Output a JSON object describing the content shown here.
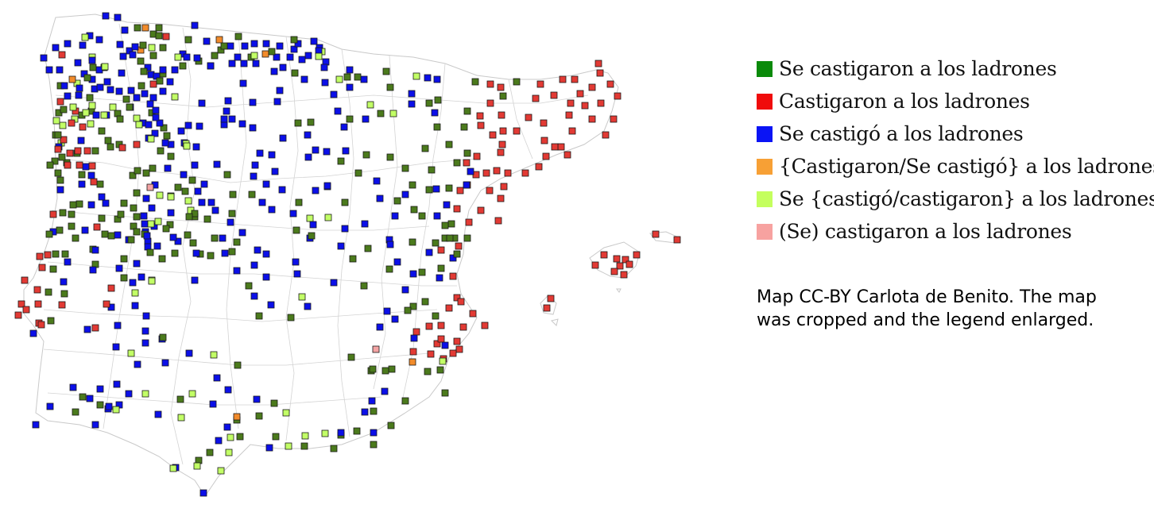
{
  "legend": [
    {
      "key": "G",
      "label": "Se castigaron a los ladrones",
      "color": "#0a8a0a"
    },
    {
      "key": "R",
      "label": "Castigaron a los ladrones",
      "color": "#f00c0c"
    },
    {
      "key": "B",
      "label": "Se castigó a los ladrones",
      "color": "#0a14f5"
    },
    {
      "key": "O",
      "label": "{Castigaron/Se castigó} a los ladrones",
      "color": "#f7a035"
    },
    {
      "key": "L",
      "label": "Se {castigó/castigaron} a los ladrones",
      "color": "#c4ff5e"
    },
    {
      "key": "P",
      "label": "(Se) castigaron a los ladrones",
      "color": "#f7a2a0"
    }
  ],
  "credit": {
    "line1": "Map CC-BY Carlota de Benito. The map",
    "line2": "was cropped and the legend enlarged."
  },
  "marker_colors": {
    "G": "#4b7a1c",
    "R": "#e23a34",
    "B": "#0b0fe8",
    "O": "#f28b2b",
    "L": "#c2ff66",
    "P": "#f4a4a4"
  }
}
